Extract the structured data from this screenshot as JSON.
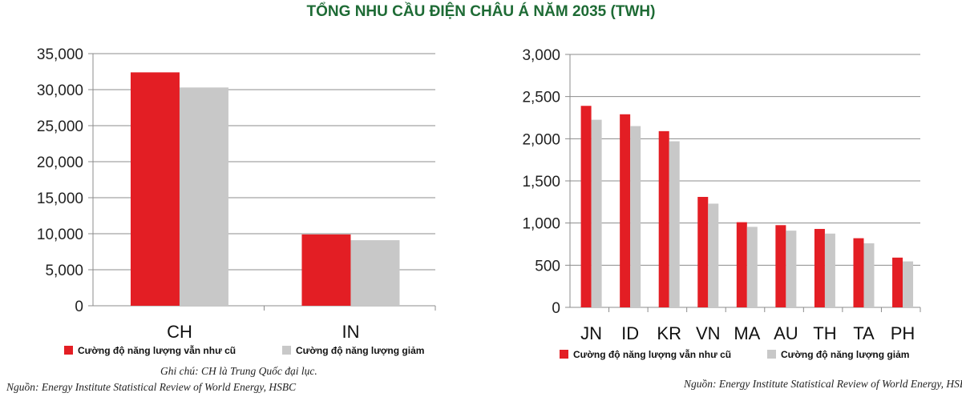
{
  "title": "TỔNG NHU CẦU ĐIỆN CHÂU Á NĂM 2035 (TWH)",
  "colors": {
    "series1": "#e31e24",
    "series2": "#c8c8c8",
    "title": "#1e6b35",
    "grid": "#8c8c8c"
  },
  "chart_data": [
    {
      "type": "bar",
      "categories": [
        "CH",
        "IN"
      ],
      "series": [
        {
          "name": "Cường độ năng lượng vẫn như cũ",
          "values": [
            32400,
            9900
          ]
        },
        {
          "name": "Cường độ năng lượng giảm",
          "values": [
            30300,
            9100
          ]
        }
      ],
      "yticks": [
        "0",
        "5,000",
        "10,000",
        "15,000",
        "20,000",
        "25,000",
        "30,000",
        "35,000"
      ],
      "ylim": [
        0,
        35000
      ],
      "grid": true,
      "legend": "bottom"
    },
    {
      "type": "bar",
      "categories": [
        "JN",
        "ID",
        "KR",
        "VN",
        "MA",
        "AU",
        "TH",
        "TA",
        "PH"
      ],
      "series": [
        {
          "name": "Cường độ năng lượng vẫn như cũ",
          "values": [
            2390,
            2290,
            2090,
            1310,
            1010,
            975,
            930,
            820,
            590
          ]
        },
        {
          "name": "Cường độ năng lượng giảm",
          "values": [
            2225,
            2150,
            1970,
            1230,
            955,
            910,
            875,
            760,
            545
          ]
        }
      ],
      "yticks": [
        "0",
        "500",
        "1,000",
        "1,500",
        "2,000",
        "2,500",
        "3,000"
      ],
      "ylim": [
        0,
        3000
      ],
      "grid": true,
      "legend": "bottom"
    }
  ],
  "notes": {
    "left_note": "Ghi chú: CH là Trung Quốc đại lục.",
    "left_source": "Nguồn: Energy Institute Statistical Review of World Energy, HSBC",
    "right_source": "Nguồn: Energy Institute Statistical Review of World Energy, HSBC"
  }
}
